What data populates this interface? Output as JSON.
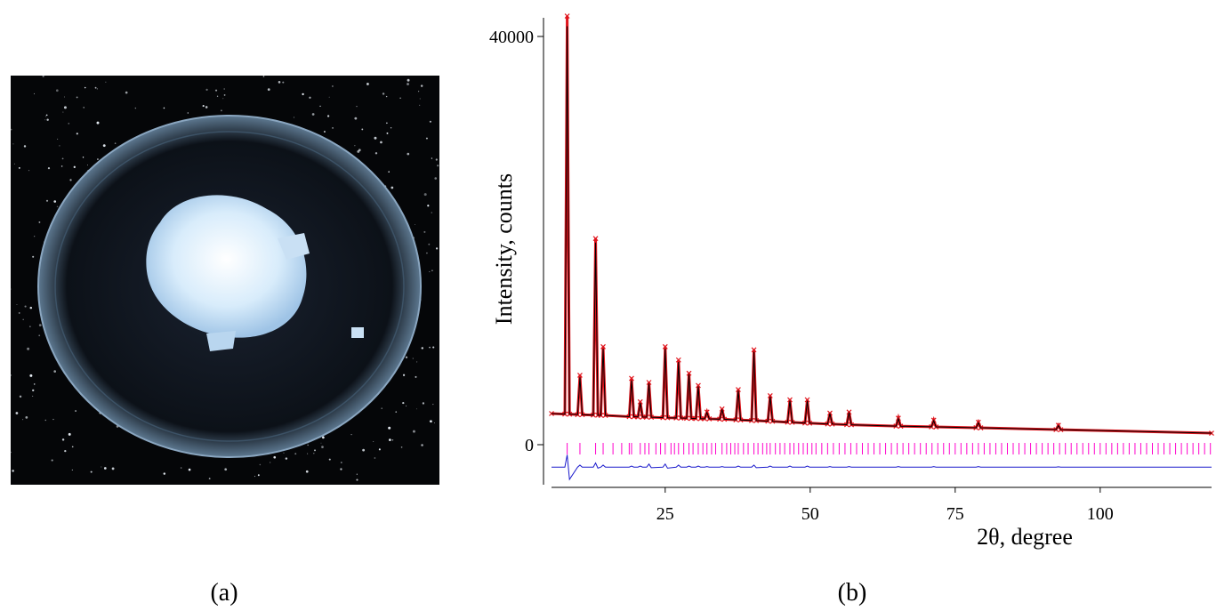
{
  "panel_labels": [
    "(a)",
    "(b)"
  ],
  "chart_data": {
    "type": "line",
    "xlabel": "2θ, degree",
    "ylabel": "Intensity, counts",
    "xlim": [
      5.4,
      119.2
    ],
    "ylim": [
      -3922,
      41830
    ],
    "xticks": [
      25,
      50,
      75,
      100
    ],
    "yticks": [
      0,
      40000
    ],
    "x": [
      5.4,
      7.7,
      8.1,
      8.5,
      9.9,
      10.3,
      10.7,
      12.6,
      13.0,
      13.4,
      13.9,
      14.3,
      14.7,
      18.8,
      19.2,
      19.6,
      20.3,
      20.7,
      21.1,
      21.8,
      22.2,
      22.6,
      24.6,
      25.0,
      25.4,
      26.9,
      27.3,
      27.7,
      28.7,
      29.1,
      29.5,
      30.3,
      30.7,
      31.1,
      31.8,
      32.2,
      32.6,
      34.4,
      34.8,
      35.2,
      37.2,
      37.6,
      38.0,
      39.9,
      40.3,
      40.7,
      42.7,
      43.1,
      43.5,
      46.1,
      46.5,
      46.9,
      49.1,
      49.5,
      49.9,
      53.0,
      53.4,
      53.8,
      56.3,
      56.7,
      57.1,
      64.8,
      65.2,
      65.6,
      70.9,
      71.3,
      71.7,
      78.6,
      79.0,
      79.4,
      92.4,
      92.8,
      93.2,
      119.2
    ],
    "series": [
      {
        "style": "markers",
        "color": "#e0141c",
        "values": [
          3050,
          3000,
          42000,
          2990,
          2950,
          6800,
          2940,
          2900,
          20200,
          2890,
          2880,
          9600,
          2870,
          2750,
          6500,
          2740,
          2720,
          4200,
          2710,
          2700,
          6100,
          2690,
          2650,
          9600,
          2640,
          2620,
          8300,
          2610,
          2590,
          7000,
          2580,
          2560,
          5800,
          2550,
          2540,
          3200,
          2530,
          2500,
          3500,
          2490,
          2430,
          5400,
          2420,
          2370,
          9300,
          2360,
          2300,
          4800,
          2290,
          2200,
          4400,
          2190,
          2120,
          4400,
          2110,
          2030,
          3100,
          2020,
          1960,
          3200,
          1950,
          1820,
          2600,
          1810,
          1750,
          2400,
          1740,
          1660,
          2200,
          1650,
          1480,
          1900,
          1470,
          1130
        ]
      },
      {
        "style": "line",
        "color": "#000000",
        "values": [
          3050,
          3000,
          41000,
          2990,
          2950,
          6600,
          2940,
          2900,
          19800,
          2890,
          2880,
          9400,
          2870,
          2750,
          6300,
          2740,
          2720,
          4100,
          2710,
          2700,
          6000,
          2690,
          2650,
          9400,
          2640,
          2620,
          8100,
          2610,
          2590,
          6900,
          2580,
          2560,
          5700,
          2550,
          2540,
          3150,
          2530,
          2500,
          3450,
          2490,
          2430,
          5300,
          2420,
          2370,
          9100,
          2360,
          2300,
          4700,
          2290,
          2200,
          4300,
          2190,
          2120,
          4300,
          2110,
          2030,
          3050,
          2020,
          1960,
          3150,
          1950,
          1820,
          2550,
          1810,
          1750,
          2350,
          1740,
          1660,
          2150,
          1650,
          1480,
          1870,
          1470,
          1130
        ]
      },
      {
        "style": "line",
        "color": "#1a1acc",
        "values": [
          -2200,
          -2200,
          -1000,
          -3400,
          -2200,
          -2000,
          -2200,
          -2200,
          -1800,
          -2300,
          -2200,
          -2000,
          -2200,
          -2200,
          -2100,
          -2200,
          -2200,
          -2100,
          -2200,
          -2200,
          -1900,
          -2250,
          -2200,
          -1900,
          -2300,
          -2200,
          -2000,
          -2200,
          -2200,
          -2100,
          -2200,
          -2200,
          -2100,
          -2200,
          -2200,
          -2150,
          -2200,
          -2200,
          -2150,
          -2200,
          -2200,
          -2100,
          -2200,
          -2200,
          -2000,
          -2250,
          -2200,
          -2100,
          -2200,
          -2200,
          -2100,
          -2200,
          -2200,
          -2100,
          -2200,
          -2200,
          -2150,
          -2200,
          -2200,
          -2150,
          -2200,
          -2200,
          -2150,
          -2200,
          -2200,
          -2150,
          -2200,
          -2200,
          -2150,
          -2200,
          -2200,
          -2170,
          -2200,
          -2200
        ]
      }
    ],
    "bragg_color": "#ff00cc",
    "bragg_positions": [
      8.1,
      10.3,
      13.0,
      14.3,
      16.0,
      17.5,
      18.8,
      19.2,
      20.7,
      21.5,
      22.2,
      23.4,
      24.2,
      25.0,
      26.0,
      26.6,
      27.3,
      28.2,
      29.1,
      29.8,
      30.7,
      31.5,
      32.2,
      33.0,
      33.7,
      34.8,
      35.6,
      36.3,
      37.0,
      37.6,
      38.5,
      39.3,
      40.3,
      41.0,
      41.8,
      42.5,
      43.1,
      44.0,
      44.8,
      45.6,
      46.5,
      47.2,
      48.0,
      48.8,
      49.5,
      50.3,
      51.0,
      52.0,
      53.0,
      54.0,
      55.0,
      56.0,
      57.0,
      58.0,
      59.0,
      60.0,
      61.0,
      62.0,
      63.0,
      64.0,
      65.0,
      66.0,
      67.0,
      68.0,
      69.0,
      70.0,
      71.0,
      72.0,
      73.0,
      74.0,
      75.0,
      76.0,
      77.0,
      78.0,
      79.0,
      80.0,
      81.0,
      82.0,
      83.0,
      84.0,
      85.0,
      86.0,
      87.0,
      88.0,
      89.0,
      90.0,
      91.0,
      92.0,
      93.0,
      94.0,
      95.0,
      96.0,
      97.0,
      98.0,
      99.0,
      100.0,
      101.0,
      102.0,
      103.0,
      104.0,
      105.0,
      106.0,
      107.0,
      108.0,
      109.0,
      110.0,
      111.0,
      112.0,
      113.0,
      114.0,
      115.0,
      116.0,
      117.0,
      118.0,
      119.0
    ]
  }
}
